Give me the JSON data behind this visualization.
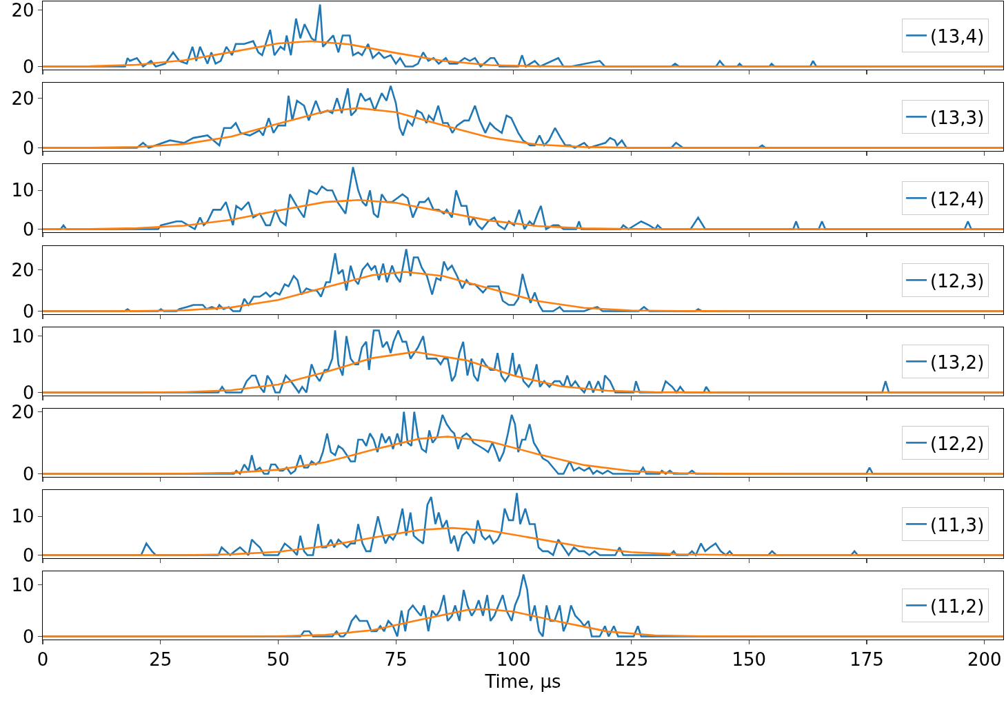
{
  "chart_data": [
    {
      "type": "line",
      "xlim": [
        0,
        204
      ],
      "xticks": [
        0,
        25,
        50,
        75,
        100,
        125,
        150,
        175,
        200
      ],
      "ylim": [
        -1.1,
        23.1
      ],
      "yticks": [
        0,
        20
      ],
      "tick_labels": "y",
      "legend": "right",
      "series": [
        {
          "name": "(13,4)",
          "color": "#1f77b4",
          "x": [
            0,
            17.5,
            18,
            18.5,
            20,
            21.3,
            23,
            24,
            26,
            27.7,
            29,
            30.6,
            31.8,
            32.6,
            33.4,
            35,
            35.8,
            36.7,
            37.8,
            39,
            40.2,
            41,
            42.8,
            44.7,
            45.8,
            46.6,
            48.3,
            49.2,
            50.5,
            51.3,
            51.8,
            52.7,
            53.8,
            54.7,
            55.6,
            57.1,
            57.9,
            58.9,
            59.5,
            60.6,
            61.7,
            62.8,
            63.7,
            65.2,
            65.9,
            67,
            67.8,
            69.1,
            70.1,
            71.4,
            72.5,
            73.9,
            75,
            75.9,
            77,
            78.6,
            79.7,
            80.8,
            81.9,
            83,
            84.1,
            85.6,
            86.4,
            88,
            89.6,
            90.7,
            91.8,
            93,
            95.1,
            95.9,
            97,
            101,
            101.8,
            102.6,
            104.5,
            105.6,
            109.5,
            110.6,
            112.2,
            118.3,
            119.4,
            133.5,
            134.3,
            135.2,
            143,
            143.8,
            144.8,
            147.5,
            148,
            148.6,
            154.3,
            154.8,
            155.4,
            163,
            163.6,
            164.3,
            204
          ],
          "values": [
            0,
            0,
            3,
            2,
            3,
            0,
            2,
            0,
            1,
            5,
            2,
            1,
            7,
            2,
            7,
            1,
            5,
            1,
            2,
            7,
            4,
            8,
            8,
            9,
            5,
            4,
            13,
            4,
            7,
            6,
            11,
            4,
            17,
            10,
            15,
            10,
            9,
            22,
            7,
            9,
            11,
            5,
            11,
            11,
            4,
            5,
            4,
            8,
            3,
            5,
            3,
            4,
            1,
            3,
            0,
            0,
            1,
            5,
            2,
            3,
            1,
            3,
            1,
            1,
            3,
            2,
            3,
            0,
            3,
            3,
            0,
            0,
            4,
            0,
            2,
            0,
            3,
            0,
            0,
            2,
            0,
            0,
            1,
            0,
            0,
            2,
            0,
            0,
            1,
            0,
            0,
            1,
            0,
            0,
            2,
            0,
            0
          ]
        },
        {
          "color": "#ff7f0e",
          "x": [
            0,
            10,
            20,
            30,
            40,
            50,
            57,
            65,
            75,
            85,
            95,
            105,
            115,
            130,
            204
          ],
          "values": [
            0,
            0.1,
            0.6,
            2.2,
            5.1,
            8.2,
            9,
            7.9,
            4.8,
            2,
            0.5,
            0.1,
            0,
            0,
            0
          ]
        }
      ]
    },
    {
      "type": "line",
      "xlim": [
        0,
        204
      ],
      "xticks": [
        0,
        25,
        50,
        75,
        100,
        125,
        150,
        175,
        200
      ],
      "ylim": [
        -1.25,
        26.25
      ],
      "yticks": [
        0,
        20
      ],
      "tick_labels": "y",
      "legend": "right",
      "series": [
        {
          "name": "(13,3)",
          "color": "#1f77b4",
          "x": [
            0,
            20,
            21.3,
            22.5,
            27,
            30,
            32,
            35,
            37.5,
            38.5,
            40,
            41,
            42,
            44,
            46,
            46.8,
            48,
            49,
            50,
            51.5,
            52.2,
            53,
            54,
            55.5,
            56.5,
            58,
            59,
            60.5,
            61.5,
            62.5,
            63.5,
            64.8,
            65.5,
            66.5,
            67.5,
            68.5,
            69.5,
            70.5,
            72,
            73,
            73.9,
            75,
            75.8,
            76.5,
            77.5,
            78.5,
            79.5,
            80.5,
            81.5,
            82,
            83,
            84,
            85,
            86,
            87,
            88,
            89.5,
            90.5,
            91.8,
            92.8,
            94,
            95,
            96,
            97.5,
            98.5,
            99.5,
            101,
            102,
            103.5,
            104.5,
            105.5,
            106.5,
            107.5,
            108.8,
            110,
            111,
            112,
            113,
            115,
            116,
            119.5,
            120.5,
            121.5,
            122,
            123,
            124,
            133.5,
            134.5,
            136,
            152,
            152.8,
            153.5,
            204
          ],
          "values": [
            0,
            0,
            2,
            0,
            3,
            2,
            4,
            5,
            1,
            8,
            8,
            10,
            6,
            5,
            7,
            5,
            12,
            6,
            9,
            9,
            21,
            11,
            19,
            17,
            11,
            19,
            14,
            15,
            14,
            20,
            14,
            24,
            13,
            15,
            22,
            19,
            20,
            15,
            22,
            19,
            25,
            18,
            8,
            5,
            11,
            9,
            15,
            14,
            10,
            13,
            11,
            17,
            10,
            10,
            6,
            9,
            11,
            11,
            17,
            11,
            6,
            10,
            8,
            6,
            13,
            12,
            6,
            3,
            1,
            1,
            5,
            1,
            3,
            8,
            4,
            1,
            1,
            0,
            2,
            0,
            2,
            4,
            3,
            1,
            3,
            0,
            0,
            2,
            0,
            0,
            1,
            0,
            0
          ]
        },
        {
          "color": "#ff7f0e",
          "x": [
            0,
            10,
            20,
            30,
            40,
            50,
            60,
            67,
            75,
            85,
            95,
            105,
            115,
            125,
            140,
            204
          ],
          "values": [
            0,
            0.05,
            0.35,
            1.5,
            4.5,
            9.7,
            14.7,
            16,
            14.4,
            9.1,
            4.1,
            1.3,
            0.3,
            0.05,
            0,
            0
          ]
        }
      ]
    },
    {
      "type": "line",
      "xlim": [
        0,
        204
      ],
      "xticks": [
        0,
        25,
        50,
        75,
        100,
        125,
        150,
        175,
        200
      ],
      "ylim": [
        -0.8,
        16.8
      ],
      "yticks": [
        0,
        10
      ],
      "tick_labels": "y",
      "legend": "right",
      "series": [
        {
          "name": "(12,4)",
          "color": "#1f77b4",
          "x": [
            0,
            3.8,
            4.4,
            5,
            24.5,
            25.1,
            28.4,
            29.5,
            30.9,
            32.3,
            33.4,
            34.2,
            35,
            36.2,
            37.8,
            38.9,
            40.4,
            41.1,
            42.2,
            43.7,
            44.7,
            46.1,
            47.4,
            48.3,
            49.4,
            50.5,
            51.6,
            52.5,
            54.4,
            55.5,
            56.6,
            58.2,
            59.3,
            60.4,
            61.5,
            62.6,
            64.3,
            65.9,
            67,
            67.9,
            68.7,
            69.5,
            70.3,
            71.2,
            72,
            73.1,
            74.2,
            75.3,
            76.4,
            77.5,
            78.6,
            80,
            81.1,
            81.9,
            83,
            84.1,
            85.2,
            85.8,
            86.9,
            87.8,
            88.9,
            90,
            90.7,
            91.5,
            92.4,
            93.3,
            94.6,
            95.9,
            96.8,
            98.1,
            99,
            100.1,
            101.2,
            102.3,
            103.4,
            104.2,
            105.1,
            105.8,
            106.9,
            108.4,
            109.5,
            110.6,
            113.3,
            113.9,
            114.4,
            122.7,
            123.3,
            124.4,
            127.1,
            128.8,
            130.1,
            130.6,
            131.5,
            137.6,
            139.2,
            140.7,
            159.4,
            160,
            160.6,
            164.8,
            165.5,
            166.2,
            195.8,
            196.5,
            197.2,
            204
          ],
          "values": [
            0,
            0,
            1,
            0,
            0,
            1,
            2,
            2,
            1,
            0,
            3,
            1,
            2,
            5,
            5,
            7,
            1,
            6,
            5,
            7,
            3,
            4,
            1,
            1,
            5,
            2,
            1,
            9,
            5,
            3,
            10,
            9,
            11,
            10,
            10,
            7,
            4,
            16,
            10,
            7,
            6,
            10,
            4,
            3,
            9,
            7,
            7,
            8,
            9,
            8,
            3,
            7,
            7,
            8,
            5,
            5,
            4,
            5,
            3,
            10,
            6,
            6,
            1,
            3,
            1,
            0,
            2,
            3,
            1,
            0,
            2,
            1,
            5,
            0,
            2,
            1,
            4,
            6,
            0,
            1,
            1,
            0,
            0,
            2,
            0,
            0,
            1,
            0,
            2,
            1,
            0,
            1,
            0,
            0,
            3,
            0,
            0,
            2,
            0,
            0,
            2,
            0,
            0,
            2,
            0,
            0
          ]
        },
        {
          "color": "#ff7f0e",
          "x": [
            0,
            10,
            20,
            30,
            40,
            50,
            60,
            67,
            75,
            85,
            95,
            105,
            115,
            125,
            140,
            204
          ],
          "values": [
            0,
            0.05,
            0.25,
            0.9,
            2.4,
            4.8,
            7,
            7.5,
            6.8,
            4.5,
            2.2,
            0.8,
            0.2,
            0.04,
            0,
            0
          ]
        }
      ]
    },
    {
      "type": "line",
      "xlim": [
        0,
        204
      ],
      "xticks": [
        0,
        25,
        50,
        75,
        100,
        125,
        150,
        175,
        200
      ],
      "ylim": [
        -1.5,
        31.5
      ],
      "yticks": [
        0,
        20
      ],
      "tick_labels": "y",
      "legend": "right",
      "series": [
        {
          "name": "(12,3)",
          "color": "#1f77b4",
          "x": [
            0,
            17.4,
            18,
            18.6,
            24.5,
            25.1,
            25.7,
            28.4,
            29,
            30.6,
            32,
            34,
            34.8,
            35.9,
            37,
            37.5,
            38.4,
            39.5,
            40.4,
            41.9,
            42.8,
            43.7,
            44.8,
            46.1,
            47.4,
            48.3,
            49.4,
            50.3,
            51.4,
            52.2,
            53.3,
            54.1,
            54.9,
            56,
            57.1,
            58.2,
            59.1,
            60.2,
            61,
            62.1,
            62.8,
            63.7,
            64.5,
            65.4,
            66.3,
            67,
            67.9,
            69,
            69.8,
            70.6,
            71.4,
            72.3,
            73.1,
            74.2,
            75,
            75.9,
            77.2,
            78.1,
            78.8,
            79.7,
            80.5,
            81.6,
            82.7,
            83.6,
            84.5,
            85.2,
            86,
            86.9,
            88,
            89.1,
            90,
            90.7,
            91.8,
            93.5,
            94.6,
            95.7,
            96.8,
            97.7,
            99,
            100.1,
            101,
            101.9,
            102.8,
            103.6,
            104.5,
            105.4,
            106.2,
            108.4,
            109.8,
            110.6,
            115,
            116.1,
            117.8,
            118.9,
            126.6,
            127.7,
            128.8,
            138.6,
            139.2,
            140,
            204
          ],
          "values": [
            0,
            0,
            1,
            0,
            0,
            1,
            0,
            0,
            1,
            2,
            3,
            3,
            1,
            2,
            1,
            3,
            1,
            2,
            0,
            0,
            6,
            3,
            7,
            7,
            9,
            7,
            9,
            8,
            13,
            12,
            17,
            15,
            8,
            11,
            10,
            10,
            7,
            14,
            14,
            28,
            18,
            20,
            10,
            22,
            15,
            13,
            20,
            23,
            20,
            22,
            15,
            23,
            14,
            22,
            17,
            14,
            30,
            17,
            26,
            26,
            21,
            17,
            8,
            16,
            15,
            24,
            20,
            22,
            17,
            11,
            15,
            13,
            13,
            9,
            12,
            12,
            12,
            5,
            3,
            3,
            6,
            18,
            10,
            4,
            9,
            3,
            0,
            0,
            2,
            0,
            0,
            1,
            2,
            0,
            0,
            2,
            0,
            0,
            1,
            0,
            0
          ]
        },
        {
          "color": "#ff7f0e",
          "x": [
            0,
            10,
            20,
            30,
            40,
            50,
            60,
            70,
            77,
            85,
            95,
            105,
            115,
            125,
            135,
            150,
            204
          ],
          "values": [
            0,
            0,
            0.04,
            0.4,
            1.8,
            5.4,
            11.5,
            17.4,
            19,
            17,
            10.9,
            4.9,
            1.6,
            0.35,
            0.06,
            0,
            0
          ]
        }
      ]
    },
    {
      "type": "line",
      "xlim": [
        0,
        204
      ],
      "xticks": [
        0,
        25,
        50,
        75,
        100,
        125,
        150,
        175,
        200
      ],
      "ylim": [
        -0.55,
        11.55
      ],
      "yticks": [
        0,
        10
      ],
      "tick_labels": "y",
      "legend": "right",
      "series": [
        {
          "name": "(13,2)",
          "color": "#1f77b4",
          "x": [
            0,
            37.3,
            38.1,
            38.9,
            42.2,
            43.3,
            44.4,
            45.2,
            46.1,
            47,
            47.7,
            48.5,
            49.4,
            50.3,
            51.6,
            52.7,
            54.4,
            55.1,
            56,
            57.1,
            58,
            58.8,
            59.9,
            60.6,
            61.5,
            62.1,
            62.8,
            63.7,
            64.5,
            65.4,
            66.3,
            67,
            67.8,
            68.7,
            69.3,
            70.3,
            71.4,
            72.2,
            73.1,
            73.9,
            74.5,
            75.5,
            76.4,
            77.2,
            78.1,
            78.9,
            79.7,
            80.8,
            81.6,
            82.5,
            83.6,
            84.5,
            85.2,
            86,
            86.9,
            87.6,
            88.5,
            89.3,
            90.2,
            91,
            91.6,
            92.4,
            93.3,
            94,
            95.1,
            95.9,
            96.6,
            97.4,
            98.2,
            99,
            99.8,
            100.4,
            101.2,
            102.1,
            103.2,
            104,
            104.9,
            105.6,
            106.5,
            107.6,
            108.7,
            109.8,
            110.6,
            111.4,
            112.2,
            113.1,
            113.9,
            115,
            116.1,
            116.9,
            118,
            118.9,
            119.4,
            120.5,
            121.6,
            125.5,
            126,
            126.8,
            131.5,
            132.3,
            133.7,
            134.6,
            135.4,
            136.3,
            140.4,
            140.9,
            141.7,
            178.3,
            179,
            179.7,
            204
          ],
          "values": [
            0,
            0,
            1,
            0,
            0,
            2,
            3,
            3,
            1,
            0,
            3,
            2,
            0,
            0,
            3,
            2,
            0,
            1,
            0,
            5,
            3,
            2,
            4,
            4,
            6,
            11,
            5,
            3,
            10,
            6,
            5,
            5,
            8,
            9,
            4,
            11,
            11,
            8,
            9,
            7,
            9,
            11,
            9,
            9,
            6,
            7,
            8,
            10,
            6,
            6,
            6,
            5,
            6,
            6,
            2,
            3,
            7,
            9,
            3,
            6,
            3,
            2,
            6,
            5,
            4,
            4,
            7,
            3,
            2,
            3,
            7,
            3,
            5,
            2,
            1,
            2,
            5,
            1,
            2,
            1,
            2,
            2,
            1,
            3,
            1,
            2,
            1,
            0,
            2,
            0,
            2,
            0,
            3,
            2,
            0,
            0,
            2,
            0,
            0,
            2,
            1,
            0,
            1,
            0,
            0,
            1,
            0,
            0,
            2,
            0,
            0
          ]
        },
        {
          "color": "#ff7f0e",
          "x": [
            0,
            20,
            30,
            40,
            50,
            60,
            70,
            79,
            90,
            100,
            110,
            120,
            130,
            145,
            204
          ],
          "values": [
            0,
            0,
            0.07,
            0.4,
            1.4,
            3.6,
            6.1,
            7.2,
            5.7,
            3,
            1.1,
            0.3,
            0.05,
            0,
            0
          ]
        }
      ]
    },
    {
      "type": "line",
      "xlim": [
        0,
        204
      ],
      "xticks": [
        0,
        25,
        50,
        75,
        100,
        125,
        150,
        175,
        200
      ],
      "ylim": [
        -1,
        21
      ],
      "yticks": [
        0,
        20
      ],
      "tick_labels": "y",
      "legend": "right",
      "series": [
        {
          "name": "(12,2)",
          "color": "#1f77b4",
          "x": [
            0,
            40.6,
            41.1,
            41.9,
            42.8,
            43.7,
            44.4,
            45.2,
            46.1,
            47,
            47.9,
            48.5,
            49.4,
            50.3,
            51,
            51.8,
            52.7,
            53.6,
            54.7,
            55.5,
            56.3,
            57.1,
            58,
            58.8,
            59.5,
            60.4,
            61.2,
            62.1,
            62.8,
            63.7,
            64.6,
            65.4,
            66.3,
            67,
            67.9,
            68.7,
            69.5,
            70.3,
            71.1,
            72,
            72.8,
            73.6,
            74.4,
            75.3,
            76.1,
            76.7,
            77.5,
            78.3,
            78.9,
            79.7,
            80.5,
            81.4,
            82.1,
            82.8,
            83.8,
            84.9,
            85.8,
            86.7,
            87.4,
            88.2,
            89.1,
            90,
            90.7,
            91.5,
            92.6,
            93.7,
            94.6,
            95.5,
            96.3,
            97,
            97.9,
            98.8,
            99.6,
            100.3,
            101,
            101.8,
            102.5,
            103.4,
            104.3,
            105.1,
            106.2,
            107.3,
            108.4,
            109.5,
            110.6,
            111.9,
            112.8,
            113.9,
            115,
            116.1,
            116.9,
            117.7,
            118.9,
            120,
            121.1,
            126.6,
            127.5,
            128.2,
            131,
            131.5,
            132.3,
            133.2,
            134,
            137,
            137.9,
            138.7,
            174.9,
            175.6,
            176.3,
            204
          ],
          "values": [
            0,
            0,
            1,
            0,
            3,
            1,
            6,
            1,
            2,
            0,
            0,
            3,
            3,
            1,
            1,
            2,
            0,
            1,
            6,
            2,
            2,
            4,
            3,
            4,
            7,
            13,
            7,
            6,
            9,
            8,
            6,
            4,
            4,
            11,
            11,
            9,
            13,
            11,
            7,
            13,
            10,
            12,
            8,
            13,
            9,
            20,
            10,
            9,
            20,
            12,
            8,
            7,
            14,
            10,
            12,
            19,
            16,
            14,
            13,
            8,
            12,
            13,
            12,
            10,
            9,
            8,
            7,
            10,
            7,
            4,
            7,
            13,
            19,
            16,
            7,
            11,
            11,
            16,
            10,
            8,
            5,
            4,
            2,
            0,
            0,
            4,
            1,
            2,
            1,
            2,
            0,
            1,
            0,
            1,
            0,
            0,
            2,
            0,
            0,
            1,
            0,
            1,
            0,
            0,
            1,
            0,
            0,
            2,
            0,
            0
          ]
        },
        {
          "color": "#ff7f0e",
          "x": [
            0,
            20,
            30,
            40,
            50,
            60,
            70,
            80,
            86,
            95,
            105,
            115,
            125,
            135,
            145,
            160,
            204
          ],
          "values": [
            0,
            0,
            0.05,
            0.3,
            1.3,
            3.7,
            7.7,
            11.3,
            12,
            10.4,
            6.4,
            2.8,
            0.9,
            0.2,
            0.03,
            0,
            0
          ]
        }
      ]
    },
    {
      "type": "line",
      "xlim": [
        0,
        204
      ],
      "xticks": [
        0,
        25,
        50,
        75,
        100,
        125,
        150,
        175,
        200
      ],
      "ylim": [
        -0.8,
        16.8
      ],
      "yticks": [
        0,
        10
      ],
      "tick_labels": "y",
      "legend": "right",
      "series": [
        {
          "name": "(11,3)",
          "color": "#1f77b4",
          "x": [
            0,
            20.9,
            22,
            23.2,
            24,
            37.3,
            38,
            38.9,
            39.8,
            40.8,
            41.9,
            42.8,
            43.7,
            44.4,
            45.2,
            46.1,
            47,
            50,
            51.4,
            52.4,
            53.3,
            54,
            54.7,
            55.5,
            56.2,
            57.4,
            58.5,
            59.3,
            60.2,
            61.2,
            61.9,
            62.8,
            63.7,
            64.6,
            65.4,
            66.3,
            67,
            67.9,
            68.7,
            69.6,
            70.3,
            71.2,
            72,
            72.8,
            73.6,
            74.4,
            75.3,
            76.4,
            77.2,
            78.1,
            78.8,
            79.7,
            80.8,
            81.7,
            82.5,
            83.4,
            84.1,
            84.9,
            85.8,
            86.7,
            87.4,
            88.2,
            89.1,
            90,
            90.7,
            91.6,
            92.4,
            93.3,
            94,
            94.9,
            95.7,
            96.6,
            97.4,
            98.1,
            99,
            99.9,
            100.7,
            101.4,
            102.5,
            103.4,
            104.5,
            105.3,
            106.2,
            107.3,
            108.4,
            109.5,
            110.6,
            111.7,
            112.8,
            113.9,
            115,
            116.1,
            117.2,
            118.3,
            121.6,
            122.5,
            123.3,
            133.2,
            134,
            134.6,
            137,
            137.9,
            138.7,
            139.8,
            140.7,
            141.7,
            142.9,
            144,
            145.1,
            145.9,
            146.6,
            154.1,
            154.9,
            155.8,
            171.7,
            172.4,
            173.1,
            204
          ],
          "values": [
            0,
            0,
            3,
            1,
            0,
            0,
            2,
            1,
            0,
            1,
            2,
            1,
            0,
            4,
            3,
            2,
            0,
            0,
            3,
            2,
            1,
            0,
            5,
            1,
            0,
            0,
            8,
            2,
            2,
            4,
            2,
            4,
            3,
            2,
            3,
            3,
            8,
            3,
            1,
            1,
            5,
            10,
            6,
            3,
            5,
            4,
            6,
            12,
            5,
            11,
            5,
            4,
            3,
            13,
            15,
            8,
            11,
            7,
            9,
            3,
            5,
            1,
            5,
            6,
            5,
            3,
            9,
            5,
            4,
            5,
            3,
            4,
            6,
            12,
            9,
            9,
            16,
            8,
            12,
            8,
            8,
            2,
            1,
            1,
            0,
            4,
            2,
            0,
            2,
            1,
            1,
            0,
            1,
            0,
            0,
            2,
            0,
            0,
            1,
            0,
            0,
            1,
            0,
            3,
            1,
            2,
            3,
            1,
            0,
            1,
            0,
            0,
            1,
            0,
            0,
            1,
            0,
            0
          ]
        },
        {
          "color": "#ff7f0e",
          "x": [
            0,
            30,
            40,
            50,
            60,
            70,
            80,
            87,
            95,
            105,
            115,
            125,
            135,
            150,
            204
          ],
          "values": [
            0,
            0.01,
            0.2,
            0.85,
            2.3,
            4.5,
            6.5,
            7,
            6.3,
            4.2,
            2.1,
            0.75,
            0.2,
            0,
            0
          ]
        }
      ]
    },
    {
      "type": "line",
      "xlabel": "Time, μs",
      "xlim": [
        0,
        204
      ],
      "xticks": [
        0,
        25,
        50,
        75,
        100,
        125,
        150,
        175,
        200
      ],
      "ylim": [
        -0.6,
        12.6
      ],
      "yticks": [
        0,
        10
      ],
      "legend": "right",
      "series": [
        {
          "name": "(11,2)",
          "color": "#1f77b4",
          "x": [
            0,
            54.7,
            55.5,
            56.6,
            57.4,
            61.5,
            62.4,
            63.2,
            63.9,
            64.8,
            65.6,
            66.5,
            67.3,
            68.1,
            68.9,
            69.8,
            70.9,
            71.7,
            72.5,
            73.4,
            74.4,
            75.3,
            76.2,
            77,
            77.7,
            78.6,
            79.4,
            80.3,
            81,
            81.9,
            82.7,
            83.6,
            84.3,
            85.2,
            86,
            86.9,
            87.6,
            88.5,
            89.4,
            90.2,
            91.1,
            91.8,
            92.6,
            93.5,
            94.4,
            95.1,
            95.9,
            96.8,
            97.7,
            98.5,
            99.6,
            100.3,
            101.2,
            102.1,
            102.9,
            103.6,
            104.5,
            105.4,
            106.2,
            107,
            107.8,
            108.7,
            109.8,
            110.6,
            111.5,
            112.2,
            113.1,
            114.2,
            115,
            115.9,
            116.6,
            118.3,
            119.4,
            120.2,
            121.3,
            122.2,
            125.5,
            126.4,
            127.1,
            204
          ],
          "values": [
            0,
            0,
            1,
            1,
            0,
            0,
            1,
            0,
            0,
            1,
            3,
            4,
            3,
            3,
            3,
            1,
            1,
            2,
            1,
            3,
            2,
            0,
            5,
            1,
            5,
            6,
            5,
            4,
            6,
            1,
            5,
            4,
            5,
            8,
            3,
            4,
            6,
            3,
            9,
            6,
            4,
            5,
            7,
            4,
            8,
            3,
            4,
            6,
            8,
            5,
            3,
            6,
            8,
            12,
            9,
            3,
            6,
            1,
            0,
            6,
            3,
            3,
            6,
            1,
            3,
            6,
            4,
            3,
            2,
            3,
            0,
            0,
            2,
            0,
            2,
            0,
            0,
            2,
            0,
            0
          ]
        },
        {
          "color": "#ff7f0e",
          "x": [
            0,
            40,
            50,
            60,
            70,
            80,
            90,
            94,
            100,
            110,
            120,
            130,
            140,
            155,
            204
          ],
          "values": [
            0,
            0,
            0.04,
            0.3,
            1.2,
            3.2,
            5.1,
            5.3,
            4.8,
            2.8,
            0.95,
            0.2,
            0.03,
            0,
            0
          ]
        }
      ]
    }
  ]
}
